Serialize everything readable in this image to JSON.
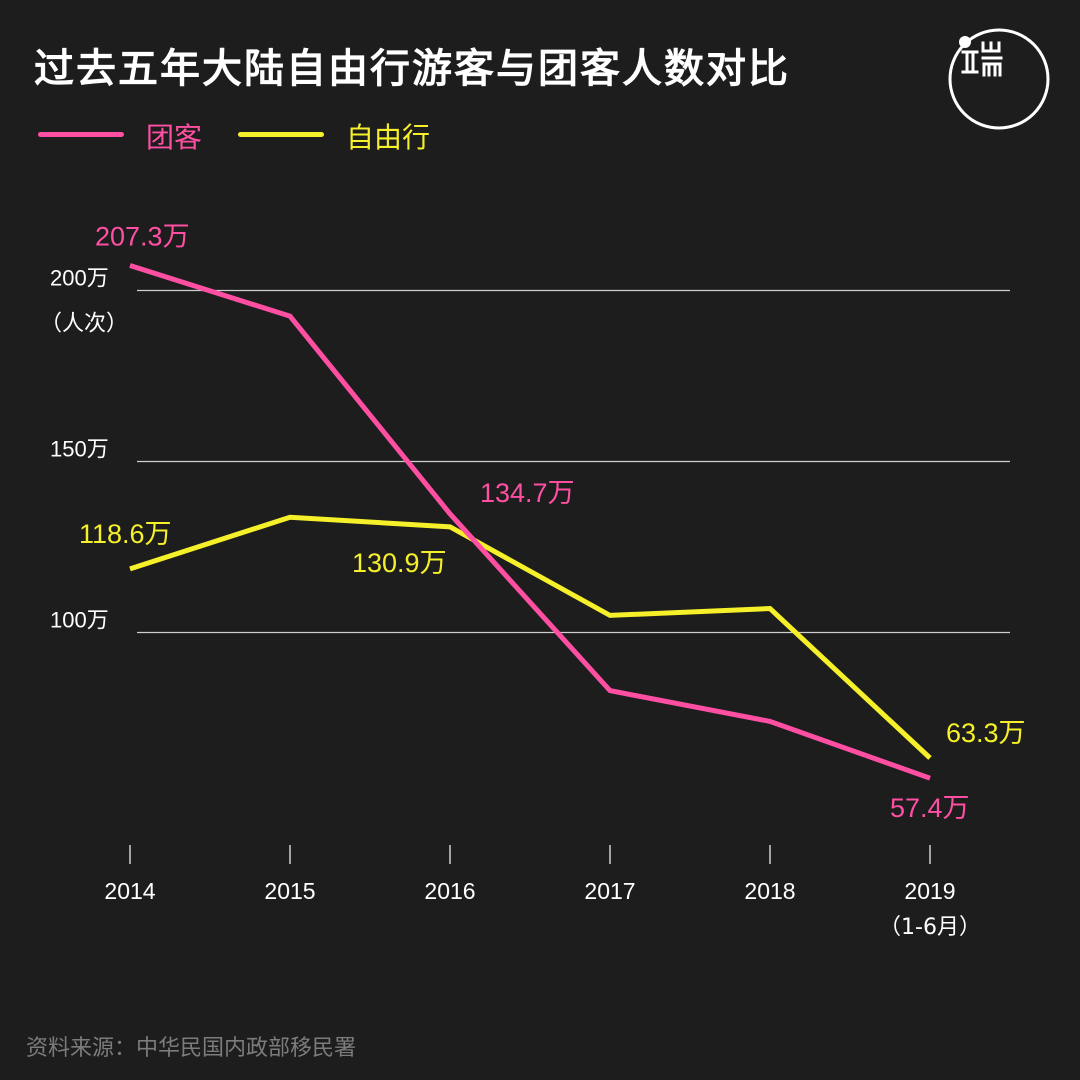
{
  "title": "过去五年大陆自由行游客与团客人数对比",
  "source": "资料来源：中华民国内政部移民署",
  "logo": {
    "icon": "theinitium-logo-icon"
  },
  "colors": {
    "background": "#1d1d1d",
    "group": "#ff4fa3",
    "independent": "#f5f02a",
    "grid": "#cfcfcf",
    "axis_text": "#ffffff",
    "source_text": "#7c7c7c"
  },
  "chart_data": {
    "type": "line",
    "x": [
      "2014",
      "2015",
      "2016",
      "2017",
      "2018",
      "2019"
    ],
    "x_sublabels": [
      "",
      "",
      "",
      "",
      "",
      "（1-6月）"
    ],
    "ylim": [
      30,
      230
    ],
    "y_ticks": [
      100,
      150,
      200
    ],
    "y_tick_labels": [
      "100万",
      "150万",
      "200万"
    ],
    "y_unit_label": "（人次）",
    "grid": "horizontal",
    "legend_position": "top-left",
    "series": [
      {
        "name": "团客",
        "values": [
          207.3,
          192.5,
          134.7,
          83.0,
          74.0,
          57.4
        ],
        "labels": [
          "207.3万",
          "",
          "134.7万",
          "",
          "",
          "57.4万"
        ]
      },
      {
        "name": "自由行",
        "values": [
          118.6,
          133.7,
          130.9,
          105.0,
          107.0,
          63.3
        ],
        "labels": [
          "118.6万",
          "",
          "130.9万",
          "",
          "",
          "63.3万"
        ]
      }
    ]
  }
}
